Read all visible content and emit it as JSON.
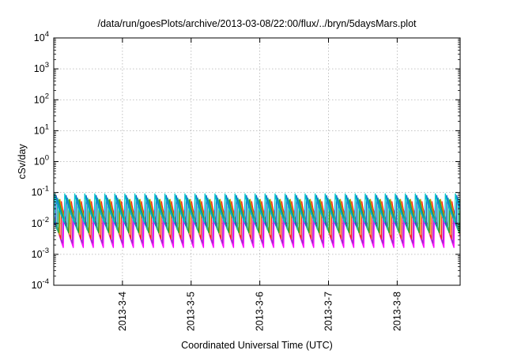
{
  "chart_data": {
    "type": "line",
    "title": "/data/run/goesPlots/archive/2013-03-08/22:00/flux/../bryn/5daysMars.plot",
    "xlabel": "Coordinated Universal Time (UTC)",
    "ylabel": "cSv/day",
    "yscale": "log",
    "ylim": [
      0.0001,
      10000
    ],
    "xlim": [
      "2013-03-03T00:00",
      "2013-03-08T22:00"
    ],
    "x_ticks": [
      "2013-3-4",
      "2013-3-5",
      "2013-3-6",
      "2013-3-7",
      "2013-3-8"
    ],
    "y_ticks": [
      {
        "base": "10",
        "exp": "-4"
      },
      {
        "base": "10",
        "exp": "-3"
      },
      {
        "base": "10",
        "exp": "-2"
      },
      {
        "base": "10",
        "exp": "-1"
      },
      {
        "base": "10",
        "exp": "0"
      },
      {
        "base": "10",
        "exp": "1"
      },
      {
        "base": "10",
        "exp": "2"
      },
      {
        "base": "10",
        "exp": "3"
      },
      {
        "base": "10",
        "exp": "4"
      }
    ],
    "grid": true,
    "oscillation_period_hours": 3.5,
    "series": [
      {
        "color": "#ff00ff",
        "peak": 0.025,
        "trough": 0.0015
      },
      {
        "color": "#9b30c8",
        "peak": 0.035,
        "trough": 0.0022
      },
      {
        "color": "#ff2020",
        "peak": 0.06,
        "trough": 0.003
      },
      {
        "color": "#e0a000",
        "peak": 0.065,
        "trough": 0.004
      },
      {
        "color": "#1f9c3a",
        "peak": 0.075,
        "trough": 0.005
      },
      {
        "color": "#20b2aa",
        "peak": 0.08,
        "trough": 0.006
      },
      {
        "color": "#1e5fcf",
        "peak": 0.09,
        "trough": 0.008
      },
      {
        "color": "#00c8c8",
        "peak": 0.095,
        "trough": 0.01
      }
    ]
  }
}
